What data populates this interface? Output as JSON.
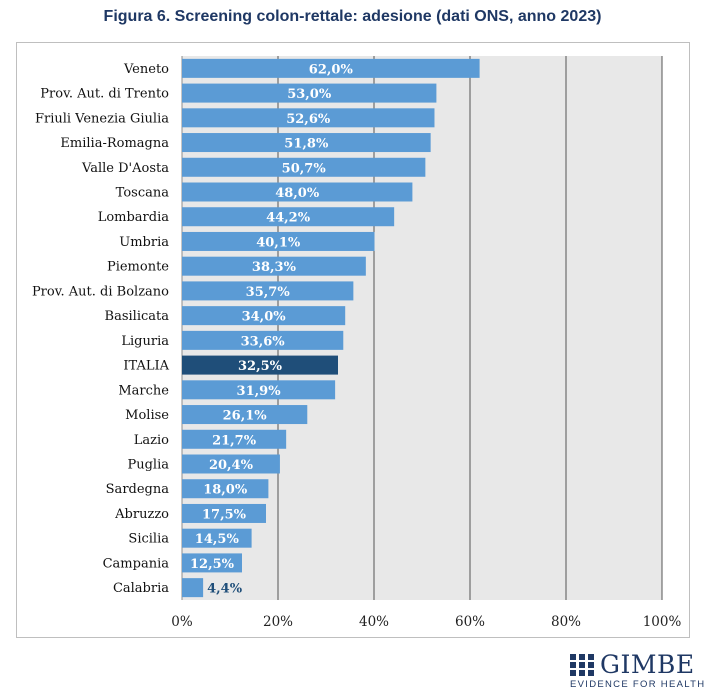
{
  "title": "Figura 6. Screening colon-rettale: adesione (dati ONS, anno 2023)",
  "logo": {
    "name": "GIMBE",
    "tagline": "EVIDENCE FOR HEALTH"
  },
  "colors": {
    "bar": "#5b9bd5",
    "highlight": "#1f4e79",
    "plot_bg": "#e8e8e8",
    "title": "#1f3864",
    "grid": "#555555"
  },
  "chart_data": {
    "type": "bar",
    "orientation": "horizontal",
    "title": "Figura 6. Screening colon-rettale: adesione (dati ONS, anno 2023)",
    "xlabel": "",
    "ylabel": "",
    "xlim": [
      0,
      100
    ],
    "xticks": [
      0,
      20,
      40,
      60,
      80,
      100
    ],
    "xtick_labels": [
      "0%",
      "20%",
      "40%",
      "60%",
      "80%",
      "100%"
    ],
    "grid": true,
    "highlight_category": "ITALIA",
    "categories": [
      "Veneto",
      "Prov. Aut. di Trento",
      "Friuli Venezia Giulia",
      "Emilia-Romagna",
      "Valle D'Aosta",
      "Toscana",
      "Lombardia",
      "Umbria",
      "Piemonte",
      "Prov. Aut. di Bolzano",
      "Basilicata",
      "Liguria",
      "ITALIA",
      "Marche",
      "Molise",
      "Lazio",
      "Puglia",
      "Sardegna",
      "Abruzzo",
      "Sicilia",
      "Campania",
      "Calabria"
    ],
    "values": [
      62.0,
      53.0,
      52.6,
      51.8,
      50.7,
      48.0,
      44.2,
      40.1,
      38.3,
      35.7,
      34.0,
      33.6,
      32.5,
      31.9,
      26.1,
      21.7,
      20.4,
      18.0,
      17.5,
      14.5,
      12.5,
      4.4
    ],
    "value_labels": [
      "62,0%",
      "53,0%",
      "52,6%",
      "51,8%",
      "50,7%",
      "48,0%",
      "44,2%",
      "40,1%",
      "38,3%",
      "35,7%",
      "34,0%",
      "33,6%",
      "32,5%",
      "31,9%",
      "26,1%",
      "21,7%",
      "20,4%",
      "18,0%",
      "17,5%",
      "14,5%",
      "12,5%",
      "4,4%"
    ]
  }
}
